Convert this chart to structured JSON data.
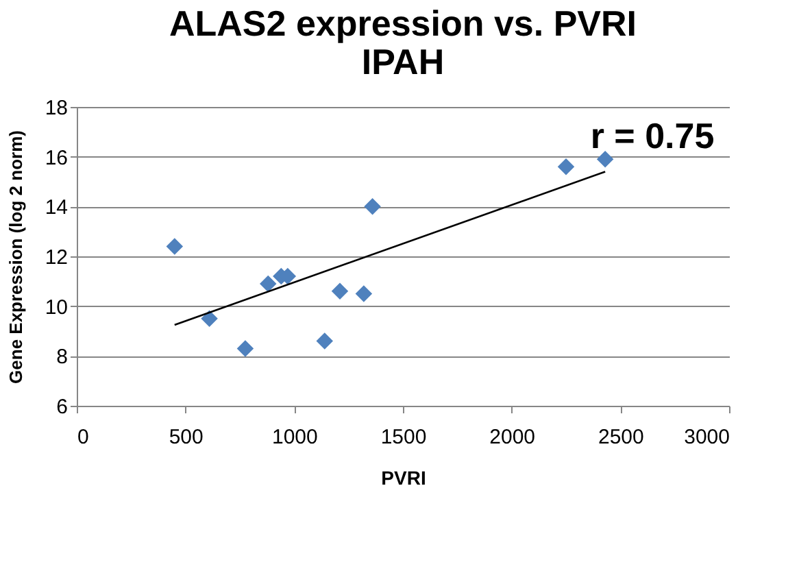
{
  "chart_data": {
    "type": "scatter",
    "title": [
      "ALAS2 expression  vs. PVRI",
      "IPAH"
    ],
    "xlabel": "PVRI",
    "ylabel": "Gene Expression  (log 2 norm)",
    "series": [
      {
        "color": "#4f81bd",
        "marker": "diamond",
        "x": [
          450,
          610,
          775,
          880,
          940,
          970,
          1140,
          1210,
          1320,
          1360,
          2250,
          2430
        ],
        "values": [
          12.4,
          9.5,
          8.3,
          10.9,
          11.2,
          11.2,
          8.6,
          10.6,
          10.5,
          14.0,
          15.6,
          15.9
        ]
      },
      {
        "type": "line",
        "color": "#000000",
        "x": [
          450,
          2430
        ],
        "values": [
          9.25,
          15.4
        ]
      }
    ],
    "annotations": [
      "r = 0.75"
    ],
    "xlim": [
      0,
      3000
    ],
    "xticks": [
      0,
      500,
      1000,
      1500,
      2000,
      2500,
      3000
    ],
    "ylim": [
      6,
      18
    ],
    "yticks": [
      6,
      8,
      10,
      12,
      14,
      16,
      18
    ],
    "grid": "y"
  }
}
